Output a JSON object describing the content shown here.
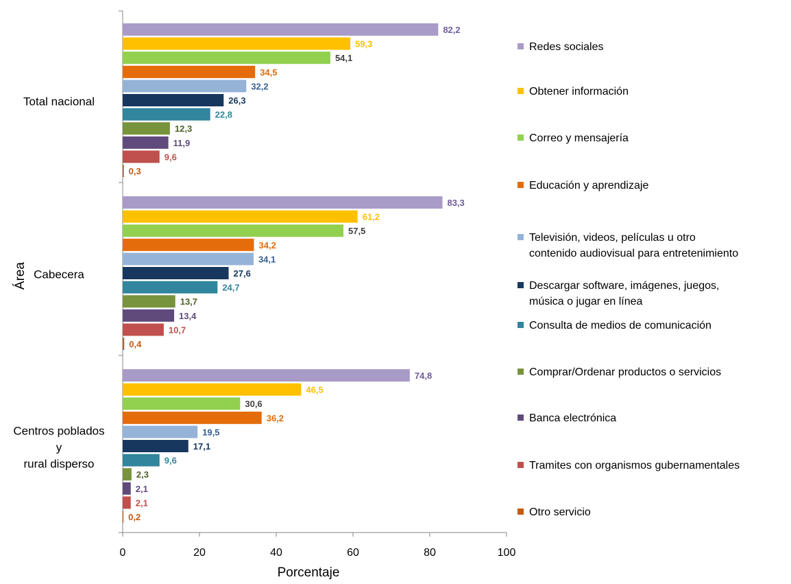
{
  "chart_data": {
    "type": "bar",
    "orientation": "horizontal",
    "xlabel": "Porcentaje",
    "ylabel": "Área",
    "xlim": [
      0,
      100
    ],
    "xticks": [
      0,
      20,
      40,
      60,
      80,
      100
    ],
    "grid": false,
    "legend_position": "right",
    "categories": [
      [
        "Total nacional"
      ],
      [
        "Cabecera"
      ],
      [
        "Centros poblados",
        "y",
        "rural disperso"
      ]
    ],
    "series": [
      {
        "name": "Redes sociales",
        "color": "#a99bc7",
        "label_color": "#6e5b9b",
        "values": [
          82.2,
          83.3,
          74.8
        ]
      },
      {
        "name": "Obtener información",
        "color": "#ffc000",
        "label_color": "#ffc000",
        "values": [
          59.3,
          61.2,
          46.5
        ]
      },
      {
        "name": "Correo y mensajería",
        "color": "#92d050",
        "label_color": "#404040",
        "values": [
          54.1,
          57.5,
          30.6
        ]
      },
      {
        "name": "Educación y aprendizaje",
        "color": "#e46c0a",
        "label_color": "#e46c0a",
        "values": [
          34.5,
          34.2,
          36.2
        ]
      },
      {
        "name": [
          "Televisión, videos, películas u otro",
          "contenido audiovisual para entretenimiento"
        ],
        "color": "#95b3d7",
        "label_color": "#376092",
        "values": [
          32.2,
          34.1,
          19.5
        ]
      },
      {
        "name": [
          "Descargar software, imágenes, juegos,",
          "música o jugar en línea"
        ],
        "color": "#17375e",
        "label_color": "#17375e",
        "values": [
          26.3,
          27.6,
          17.1
        ]
      },
      {
        "name": "Consulta de medios de comunicación",
        "color": "#31859c",
        "label_color": "#31859c",
        "values": [
          22.8,
          24.7,
          9.6
        ]
      },
      {
        "name": "Comprar/Ordenar productos o servicios",
        "color": "#77933c",
        "label_color": "#4f6228",
        "values": [
          12.3,
          13.7,
          2.3
        ]
      },
      {
        "name": "Banca electrónica",
        "color": "#604a7b",
        "label_color": "#604a7b",
        "values": [
          11.9,
          13.4,
          2.1
        ]
      },
      {
        "name": "Tramites con organismos gubernamentales",
        "color": "#c0504d",
        "label_color": "#c0504d",
        "values": [
          9.6,
          10.7,
          2.1
        ]
      },
      {
        "name": "Otro servicio",
        "color": "#c55a11",
        "label_color": "#c55a11",
        "values": [
          0.3,
          0.4,
          0.2
        ]
      }
    ],
    "value_labels": [
      [
        "82,2",
        "83,3",
        "74,8"
      ],
      [
        "59,3",
        "61,2",
        "46,5"
      ],
      [
        "54,1",
        "57,5",
        "30,6"
      ],
      [
        "34,5",
        "34,2",
        "36,2"
      ],
      [
        "32,2",
        "34,1",
        "19,5"
      ],
      [
        "26,3",
        "27,6",
        "17,1"
      ],
      [
        "22,8",
        "24,7",
        "9,6"
      ],
      [
        "12,3",
        "13,7",
        "2,3"
      ],
      [
        "11,9",
        "13,4",
        "2,1"
      ],
      [
        "9,6",
        "10,7",
        "2,1"
      ],
      [
        "0,3",
        "0,4",
        "0,2"
      ]
    ]
  }
}
